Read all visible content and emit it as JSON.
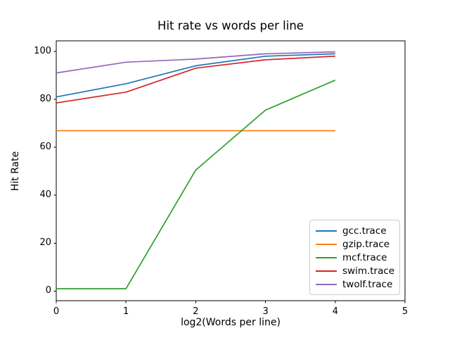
{
  "chart_data": {
    "type": "line",
    "title": "Hit rate vs words per line",
    "xlabel": "log2(Words per line)",
    "ylabel": "Hit Rate",
    "x": [
      0,
      1,
      2,
      3,
      4
    ],
    "series": [
      {
        "name": "gcc.trace",
        "color": "#1f77b4",
        "values": [
          81,
          86.5,
          94,
          98,
          99
        ]
      },
      {
        "name": "gzip.trace",
        "color": "#ff7f0e",
        "values": [
          66.9,
          66.9,
          66.9,
          66.9,
          66.9
        ]
      },
      {
        "name": "mcf.trace",
        "color": "#2ca02c",
        "values": [
          1,
          1,
          50.5,
          75.5,
          88
        ]
      },
      {
        "name": "swim.trace",
        "color": "#d62728",
        "values": [
          78.5,
          83,
          93,
          96.5,
          98
        ]
      },
      {
        "name": "twolf.trace",
        "color": "#9467bd",
        "values": [
          91,
          95.5,
          96.8,
          99,
          99.8
        ]
      }
    ],
    "xlim": [
      0,
      5
    ],
    "ylim": [
      -4,
      104.4
    ],
    "xticks": [
      0,
      1,
      2,
      3,
      4,
      5
    ],
    "yticks": [
      0,
      20,
      40,
      60,
      80,
      100
    ],
    "grid": false,
    "legend_position": "lower right",
    "axis_color": "#000000",
    "background_color": "#ffffff"
  }
}
